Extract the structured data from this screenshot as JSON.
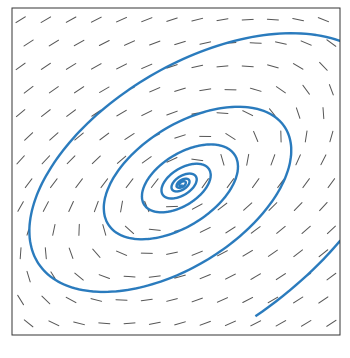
{
  "figure": {
    "type": "phase-portrait",
    "colors": {
      "background": "#ffffff",
      "frame": "#333333",
      "direction_field": "#555555",
      "trajectory": "#2a7bbd"
    },
    "direction_field": {
      "rows": 14,
      "cols": 13
    },
    "trajectory": {
      "kind": "inward-spiral",
      "turns": 7
    }
  }
}
